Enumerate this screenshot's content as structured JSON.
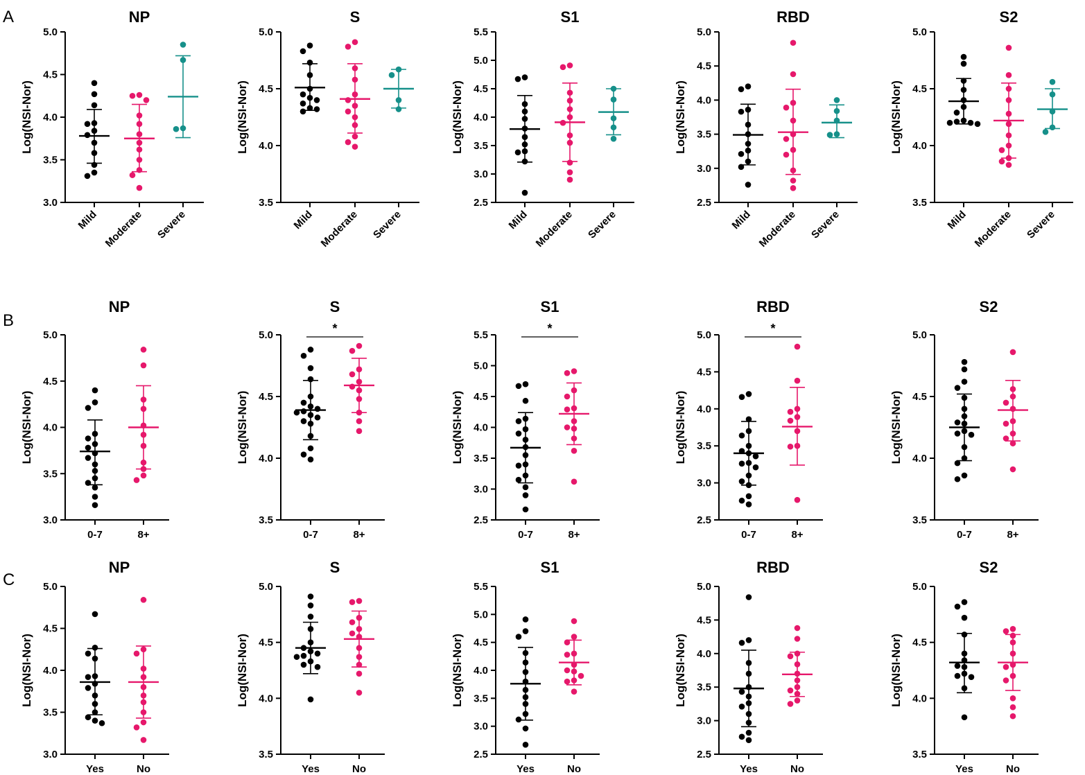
{
  "colors": {
    "black": "#000000",
    "pink": "#e6186b",
    "teal": "#16908a"
  },
  "y_axis_label": "Log(NSI-Nor)",
  "panels": [
    {
      "label": "A",
      "group_labels": [
        "Mild",
        "Moderate",
        "Severe"
      ],
      "rotate_labels": true
    },
    {
      "label": "B",
      "group_labels": [
        "0-7",
        "8+"
      ],
      "rotate_labels": false
    },
    {
      "label": "C",
      "group_labels": [
        "Yes",
        "No"
      ],
      "rotate_labels": false
    }
  ],
  "chart_data": [
    {
      "type": "scatter",
      "panel": "A",
      "title": "NP",
      "ylabel": "Log(NSI-Nor)",
      "ylim": [
        3.0,
        5.0
      ],
      "yticks": [
        "3.0",
        "3.5",
        "4.0",
        "4.5",
        "5.0"
      ],
      "groups": [
        {
          "name": "Mild",
          "color": "black",
          "mean": 3.78,
          "sd_low": 3.46,
          "sd_high": 4.09,
          "points": [
            4.4,
            4.27,
            4.14,
            3.93,
            3.92,
            3.84,
            3.79,
            3.7,
            3.58,
            3.44,
            3.35,
            3.31
          ]
        },
        {
          "name": "Moderate",
          "color": "pink",
          "mean": 3.75,
          "sd_low": 3.36,
          "sd_high": 4.15,
          "points": [
            4.26,
            4.25,
            4.2,
            4.02,
            3.92,
            3.8,
            3.7,
            3.62,
            3.5,
            3.38,
            3.32,
            3.17
          ]
        },
        {
          "name": "Severe",
          "color": "teal",
          "mean": 4.24,
          "sd_low": 3.76,
          "sd_high": 4.72,
          "points": [
            4.85,
            4.67,
            3.87,
            3.86
          ]
        }
      ],
      "sig": null
    },
    {
      "type": "scatter",
      "panel": "A",
      "title": "S",
      "ylabel": "Log(NSI-Nor)",
      "ylim": [
        3.5,
        5.0
      ],
      "yticks": [
        "3.5",
        "4.0",
        "4.5",
        "5.0"
      ],
      "groups": [
        {
          "name": "Mild",
          "color": "black",
          "mean": 4.51,
          "sd_low": 4.31,
          "sd_high": 4.72,
          "points": [
            4.88,
            4.83,
            4.73,
            4.62,
            4.5,
            4.45,
            4.42,
            4.4,
            4.37,
            4.33,
            4.32,
            4.3
          ]
        },
        {
          "name": "Moderate",
          "color": "pink",
          "mean": 4.41,
          "sd_low": 4.11,
          "sd_high": 4.72,
          "points": [
            4.91,
            4.87,
            4.68,
            4.58,
            4.45,
            4.4,
            4.35,
            4.3,
            4.25,
            4.18,
            4.08,
            4.03,
            3.99
          ]
        },
        {
          "name": "Severe",
          "color": "teal",
          "mean": 4.5,
          "sd_low": 4.33,
          "sd_high": 4.67,
          "points": [
            4.67,
            4.62,
            4.4,
            4.32
          ]
        }
      ],
      "sig": null
    },
    {
      "type": "scatter",
      "panel": "A",
      "title": "S1",
      "ylabel": "Log(NSI-Nor)",
      "ylim": [
        2.5,
        5.5
      ],
      "yticks": [
        "2.5",
        "3.0",
        "3.5",
        "4.0",
        "4.5",
        "5.0",
        "5.5"
      ],
      "groups": [
        {
          "name": "Mild",
          "color": "black",
          "mean": 3.79,
          "sd_low": 3.21,
          "sd_high": 4.38,
          "points": [
            4.7,
            4.67,
            4.23,
            4.1,
            3.97,
            3.8,
            3.65,
            3.52,
            3.4,
            3.38,
            3.22,
            2.67
          ]
        },
        {
          "name": "Moderate",
          "color": "pink",
          "mean": 3.91,
          "sd_low": 3.22,
          "sd_high": 4.6,
          "points": [
            4.91,
            4.88,
            4.43,
            4.29,
            4.14,
            4.0,
            3.9,
            3.68,
            3.55,
            3.2,
            3.03,
            2.9
          ]
        },
        {
          "name": "Severe",
          "color": "teal",
          "mean": 4.09,
          "sd_low": 3.69,
          "sd_high": 4.5,
          "points": [
            4.5,
            4.31,
            3.98,
            3.82,
            3.62
          ]
        }
      ],
      "sig": null
    },
    {
      "type": "scatter",
      "panel": "A",
      "title": "RBD",
      "ylabel": "Log(NSI-Nor)",
      "ylim": [
        2.5,
        5.0
      ],
      "yticks": [
        "2.5",
        "3.0",
        "3.5",
        "4.0",
        "4.5",
        "5.0"
      ],
      "groups": [
        {
          "name": "Mild",
          "color": "black",
          "mean": 3.49,
          "sd_low": 3.05,
          "sd_high": 3.94,
          "points": [
            4.2,
            4.16,
            3.86,
            3.83,
            3.64,
            3.5,
            3.36,
            3.26,
            3.21,
            3.1,
            3.02,
            2.76
          ]
        },
        {
          "name": "Moderate",
          "color": "pink",
          "mean": 3.53,
          "sd_low": 2.91,
          "sd_high": 4.16,
          "points": [
            4.84,
            4.38,
            3.96,
            3.89,
            3.7,
            3.5,
            3.43,
            3.27,
            3.2,
            2.97,
            2.82,
            2.71
          ]
        },
        {
          "name": "Severe",
          "color": "teal",
          "mean": 3.67,
          "sd_low": 3.45,
          "sd_high": 3.93,
          "points": [
            4.0,
            3.84,
            3.7,
            3.5,
            3.49
          ]
        }
      ],
      "sig": null
    },
    {
      "type": "scatter",
      "panel": "A",
      "title": "S2",
      "ylabel": "Log(NSI-Nor)",
      "ylim": [
        3.5,
        5.0
      ],
      "yticks": [
        "3.5",
        "4.0",
        "4.5",
        "5.0"
      ],
      "groups": [
        {
          "name": "Mild",
          "color": "black",
          "mean": 4.39,
          "sd_low": 4.19,
          "sd_high": 4.59,
          "points": [
            4.78,
            4.72,
            4.57,
            4.49,
            4.4,
            4.34,
            4.29,
            4.22,
            4.21,
            4.2,
            4.2,
            4.19
          ]
        },
        {
          "name": "Moderate",
          "color": "pink",
          "mean": 4.22,
          "sd_low": 3.89,
          "sd_high": 4.55,
          "points": [
            4.86,
            4.62,
            4.5,
            4.4,
            4.28,
            4.19,
            4.09,
            4.0,
            3.96,
            3.89,
            3.86,
            3.83
          ]
        },
        {
          "name": "Severe",
          "color": "teal",
          "mean": 4.32,
          "sd_low": 4.15,
          "sd_high": 4.5,
          "points": [
            4.56,
            4.45,
            4.3,
            4.16,
            4.12
          ]
        }
      ],
      "sig": null
    },
    {
      "type": "scatter",
      "panel": "B",
      "title": "NP",
      "ylabel": "Log(NSI-Nor)",
      "ylim": [
        3.0,
        5.0
      ],
      "yticks": [
        "3.0",
        "3.5",
        "4.0",
        "4.5",
        "5.0"
      ],
      "groups": [
        {
          "name": "0-7",
          "color": "black",
          "mean": 3.74,
          "sd_low": 3.38,
          "sd_high": 4.08,
          "points": [
            4.4,
            4.27,
            4.21,
            3.93,
            3.88,
            3.82,
            3.78,
            3.72,
            3.67,
            3.6,
            3.53,
            3.45,
            3.4,
            3.35,
            3.25,
            3.16
          ]
        },
        {
          "name": "8+",
          "color": "pink",
          "mean": 4.0,
          "sd_low": 3.55,
          "sd_high": 4.45,
          "points": [
            4.84,
            4.67,
            4.3,
            4.2,
            4.02,
            3.92,
            3.8,
            3.62,
            3.55,
            3.48,
            3.43
          ]
        }
      ],
      "sig": null
    },
    {
      "type": "scatter",
      "panel": "B",
      "title": "S",
      "ylabel": "Log(NSI-Nor)",
      "ylim": [
        3.5,
        5.0
      ],
      "yticks": [
        "3.5",
        "4.0",
        "4.5",
        "5.0"
      ],
      "groups": [
        {
          "name": "0-7",
          "color": "black",
          "mean": 4.39,
          "sd_low": 4.15,
          "sd_high": 4.63,
          "points": [
            4.88,
            4.83,
            4.73,
            4.64,
            4.5,
            4.45,
            4.42,
            4.4,
            4.38,
            4.37,
            4.35,
            4.33,
            4.3,
            4.28,
            4.18,
            4.08,
            4.03,
            3.99
          ]
        },
        {
          "name": "8+",
          "color": "pink",
          "mean": 4.59,
          "sd_low": 4.37,
          "sd_high": 4.81,
          "points": [
            4.91,
            4.87,
            4.72,
            4.68,
            4.62,
            4.58,
            4.55,
            4.48,
            4.37,
            4.3,
            4.22
          ]
        }
      ],
      "sig": "*"
    },
    {
      "type": "scatter",
      "panel": "B",
      "title": "S1",
      "ylabel": "Log(NSI-Nor)",
      "ylim": [
        2.5,
        5.5
      ],
      "yticks": [
        "2.5",
        "3.0",
        "3.5",
        "4.0",
        "4.5",
        "5.0",
        "5.5"
      ],
      "groups": [
        {
          "name": "0-7",
          "color": "black",
          "mean": 3.67,
          "sd_low": 3.1,
          "sd_high": 4.24,
          "points": [
            4.7,
            4.67,
            4.43,
            4.14,
            4.1,
            3.97,
            3.9,
            3.8,
            3.68,
            3.55,
            3.4,
            3.38,
            3.22,
            3.15,
            3.03,
            2.9,
            2.67
          ]
        },
        {
          "name": "8+",
          "color": "pink",
          "mean": 4.22,
          "sd_low": 3.72,
          "sd_high": 4.72,
          "points": [
            4.91,
            4.88,
            4.6,
            4.5,
            4.31,
            4.29,
            4.1,
            4.0,
            3.98,
            3.82,
            3.62,
            3.12
          ]
        }
      ],
      "sig": "*"
    },
    {
      "type": "scatter",
      "panel": "B",
      "title": "RBD",
      "ylabel": "Log(NSI-Nor)",
      "ylim": [
        2.5,
        5.0
      ],
      "yticks": [
        "2.5",
        "3.0",
        "3.5",
        "4.0",
        "4.5",
        "5.0"
      ],
      "groups": [
        {
          "name": "0-7",
          "color": "black",
          "mean": 3.4,
          "sd_low": 2.97,
          "sd_high": 3.83,
          "points": [
            4.2,
            4.16,
            3.86,
            3.7,
            3.64,
            3.5,
            3.43,
            3.4,
            3.36,
            3.27,
            3.26,
            3.21,
            3.1,
            3.02,
            2.97,
            2.82,
            2.76,
            2.71
          ]
        },
        {
          "name": "8+",
          "color": "pink",
          "mean": 3.76,
          "sd_low": 3.24,
          "sd_high": 4.29,
          "points": [
            4.84,
            4.38,
            4.0,
            3.96,
            3.89,
            3.84,
            3.7,
            3.5,
            3.49,
            2.77
          ]
        }
      ],
      "sig": "*"
    },
    {
      "type": "scatter",
      "panel": "B",
      "title": "S2",
      "ylabel": "Log(NSI-Nor)",
      "ylim": [
        3.5,
        5.0
      ],
      "yticks": [
        "3.5",
        "4.0",
        "4.5",
        "5.0"
      ],
      "groups": [
        {
          "name": "0-7",
          "color": "black",
          "mean": 4.25,
          "sd_low": 3.98,
          "sd_high": 4.52,
          "points": [
            4.78,
            4.72,
            4.62,
            4.57,
            4.49,
            4.4,
            4.34,
            4.29,
            4.28,
            4.22,
            4.2,
            4.19,
            4.09,
            4.0,
            3.96,
            3.86,
            3.83
          ]
        },
        {
          "name": "8+",
          "color": "pink",
          "mean": 4.39,
          "sd_low": 4.14,
          "sd_high": 4.63,
          "points": [
            4.86,
            4.56,
            4.5,
            4.45,
            4.4,
            4.3,
            4.28,
            4.2,
            4.16,
            4.12,
            3.91
          ]
        }
      ],
      "sig": null
    },
    {
      "type": "scatter",
      "panel": "C",
      "title": "NP",
      "ylabel": "Log(NSI-Nor)",
      "ylim": [
        3.0,
        5.0
      ],
      "yticks": [
        "3.0",
        "3.5",
        "4.0",
        "4.5",
        "5.0"
      ],
      "groups": [
        {
          "name": "Yes",
          "color": "black",
          "mean": 3.86,
          "sd_low": 3.47,
          "sd_high": 4.26,
          "points": [
            4.67,
            4.27,
            4.2,
            4.14,
            3.93,
            3.92,
            3.84,
            3.79,
            3.7,
            3.6,
            3.5,
            3.44,
            3.4,
            3.37
          ]
        },
        {
          "name": "No",
          "color": "pink",
          "mean": 3.86,
          "sd_low": 3.43,
          "sd_high": 4.29,
          "points": [
            4.84,
            4.25,
            4.2,
            4.02,
            3.92,
            3.8,
            3.7,
            3.62,
            3.5,
            3.38,
            3.32,
            3.17
          ]
        }
      ],
      "sig": null
    },
    {
      "type": "scatter",
      "panel": "C",
      "title": "S",
      "ylabel": "Log(NSI-Nor)",
      "ylim": [
        3.5,
        5.0
      ],
      "yticks": [
        "3.5",
        "4.0",
        "4.5",
        "5.0"
      ],
      "groups": [
        {
          "name": "Yes",
          "color": "black",
          "mean": 4.45,
          "sd_low": 4.22,
          "sd_high": 4.68,
          "points": [
            4.91,
            4.83,
            4.73,
            4.62,
            4.5,
            4.45,
            4.42,
            4.4,
            4.38,
            4.37,
            4.33,
            4.3,
            4.28,
            3.99
          ]
        },
        {
          "name": "No",
          "color": "pink",
          "mean": 4.53,
          "sd_low": 4.28,
          "sd_high": 4.78,
          "points": [
            4.87,
            4.86,
            4.72,
            4.68,
            4.62,
            4.58,
            4.55,
            4.45,
            4.37,
            4.3,
            4.22,
            4.05
          ]
        }
      ],
      "sig": null
    },
    {
      "type": "scatter",
      "panel": "C",
      "title": "S1",
      "ylabel": "Log(NSI-Nor)",
      "ylim": [
        2.5,
        5.5
      ],
      "yticks": [
        "2.5",
        "3.0",
        "3.5",
        "4.0",
        "4.5",
        "5.0",
        "5.5"
      ],
      "groups": [
        {
          "name": "Yes",
          "color": "black",
          "mean": 3.76,
          "sd_low": 3.11,
          "sd_high": 4.41,
          "points": [
            4.91,
            4.7,
            4.6,
            4.31,
            4.14,
            3.97,
            3.8,
            3.65,
            3.52,
            3.4,
            3.22,
            3.12,
            2.96,
            2.67
          ]
        },
        {
          "name": "No",
          "color": "pink",
          "mean": 4.14,
          "sd_low": 3.74,
          "sd_high": 4.54,
          "points": [
            4.88,
            4.6,
            4.5,
            4.3,
            4.28,
            4.1,
            4.0,
            3.98,
            3.9,
            3.82,
            3.8,
            3.62
          ]
        }
      ],
      "sig": null
    },
    {
      "type": "scatter",
      "panel": "C",
      "title": "RBD",
      "ylabel": "Log(NSI-Nor)",
      "ylim": [
        2.5,
        5.0
      ],
      "yticks": [
        "2.5",
        "3.0",
        "3.5",
        "4.0",
        "4.5",
        "5.0"
      ],
      "groups": [
        {
          "name": "Yes",
          "color": "black",
          "mean": 3.48,
          "sd_low": 2.91,
          "sd_high": 4.05,
          "points": [
            4.84,
            4.2,
            4.16,
            3.86,
            3.7,
            3.5,
            3.43,
            3.36,
            3.26,
            3.21,
            3.1,
            2.97,
            2.82,
            2.76,
            2.71
          ]
        },
        {
          "name": "No",
          "color": "pink",
          "mean": 3.69,
          "sd_low": 3.36,
          "sd_high": 4.02,
          "points": [
            4.38,
            4.22,
            4.0,
            3.96,
            3.84,
            3.7,
            3.6,
            3.5,
            3.45,
            3.4,
            3.3,
            3.25
          ]
        }
      ],
      "sig": null
    },
    {
      "type": "scatter",
      "panel": "C",
      "title": "S2",
      "ylabel": "Log(NSI-Nor)",
      "ylim": [
        3.5,
        5.0
      ],
      "yticks": [
        "3.5",
        "4.0",
        "4.5",
        "5.0"
      ],
      "groups": [
        {
          "name": "Yes",
          "color": "black",
          "mean": 4.32,
          "sd_low": 4.05,
          "sd_high": 4.58,
          "points": [
            4.86,
            4.82,
            4.72,
            4.57,
            4.4,
            4.34,
            4.29,
            4.28,
            4.22,
            4.2,
            4.19,
            4.09,
            3.83
          ]
        },
        {
          "name": "No",
          "color": "pink",
          "mean": 4.32,
          "sd_low": 4.07,
          "sd_high": 4.57,
          "points": [
            4.62,
            4.6,
            4.56,
            4.5,
            4.4,
            4.3,
            4.28,
            4.2,
            4.16,
            4.0,
            3.92,
            3.84
          ]
        }
      ],
      "sig": null
    }
  ]
}
